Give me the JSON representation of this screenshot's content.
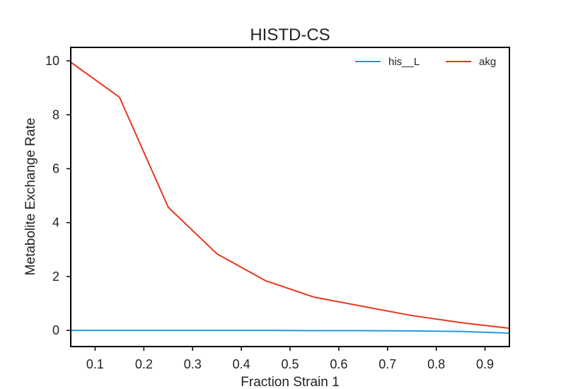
{
  "chart_data": {
    "type": "line",
    "title": "HISTD-CS",
    "xlabel": "Fraction Strain 1",
    "ylabel": "Metabolite Exchange Rate",
    "xlim": [
      0.05,
      0.95
    ],
    "ylim": [
      -0.6,
      10.5
    ],
    "xticks": [
      0.1,
      0.2,
      0.3,
      0.4,
      0.5,
      0.6,
      0.7,
      0.8,
      0.9
    ],
    "yticks": [
      0,
      2,
      4,
      6,
      8,
      10
    ],
    "xtick_labels": [
      "0.1",
      "0.2",
      "0.3",
      "0.4",
      "0.5",
      "0.6",
      "0.7",
      "0.8",
      "0.9"
    ],
    "ytick_labels": [
      "0",
      "2",
      "4",
      "6",
      "8",
      "10"
    ],
    "grid": false,
    "legend_position": "top-right",
    "series": [
      {
        "name": "his__L",
        "color": "#1f9be0",
        "x": [
          0.05,
          0.15,
          0.25,
          0.35,
          0.45,
          0.55,
          0.65,
          0.75,
          0.85,
          0.95
        ],
        "y": [
          0.0,
          0.0,
          0.0,
          0.0,
          0.0,
          -0.01,
          -0.01,
          -0.02,
          -0.04,
          -0.1
        ]
      },
      {
        "name": "akg",
        "color": "#e8361d",
        "x": [
          0.05,
          0.15,
          0.25,
          0.35,
          0.45,
          0.55,
          0.65,
          0.75,
          0.85,
          0.95
        ],
        "y": [
          9.95,
          8.65,
          4.57,
          2.84,
          1.84,
          1.23,
          0.89,
          0.55,
          0.29,
          0.08
        ]
      }
    ]
  }
}
